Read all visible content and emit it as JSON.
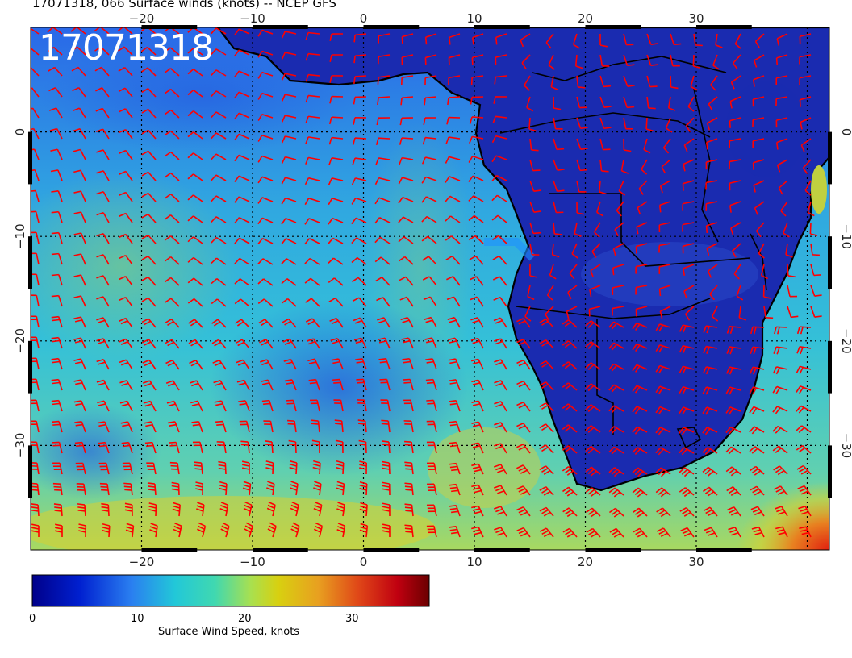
{
  "title": "17071318, 066 Surface winds (knots) -- NCEP GFS",
  "stamp": "17071318",
  "map": {
    "lon_range": [
      -30,
      42
    ],
    "lat_range": [
      -40,
      10
    ],
    "top_labels": [
      "−20",
      "−10",
      "0",
      "10",
      "20",
      "30"
    ],
    "bottom_labels": [
      "−20",
      "−10",
      "0",
      "10",
      "20",
      "30"
    ],
    "left_labels": [
      "0",
      "−10",
      "−20",
      "−30"
    ],
    "right_labels": [
      "0",
      "−10",
      "−20",
      "−30"
    ],
    "land_color": "#1a2bb0",
    "barb_color": "#ff0000",
    "coast_color": "#000000"
  },
  "colorbar": {
    "label": "Surface Wind Speed, knots",
    "ticks": [
      "0",
      "10",
      "20",
      "30"
    ],
    "range": [
      0,
      36
    ]
  }
}
